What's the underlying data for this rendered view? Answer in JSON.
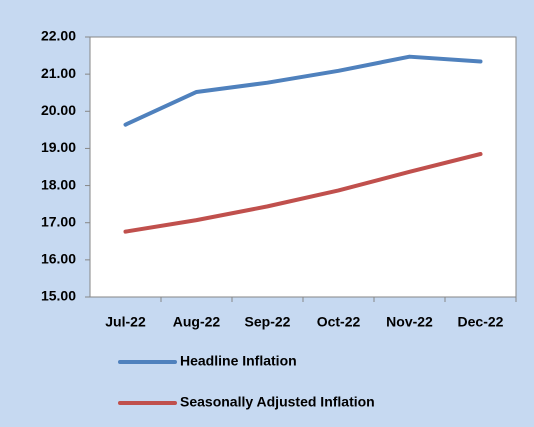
{
  "chart_data": {
    "type": "line",
    "categories": [
      "Jul-22",
      "Aug-22",
      "Sep-22",
      "Oct-22",
      "Nov-22",
      "Dec-22"
    ],
    "series": [
      {
        "name": "Headline Inflation",
        "color": "#4f81bd",
        "values": [
          19.64,
          20.52,
          20.77,
          21.09,
          21.47,
          21.34
        ]
      },
      {
        "name": "Seasonally Adjusted Inflation",
        "color": "#c0504d",
        "values": [
          16.76,
          17.07,
          17.44,
          17.87,
          18.37,
          18.85
        ]
      }
    ],
    "ylim": [
      15,
      22
    ],
    "yticks": [
      {
        "value": 15,
        "label": "15.00"
      },
      {
        "value": 16,
        "label": "16.00"
      },
      {
        "value": 17,
        "label": "17.00"
      },
      {
        "value": 18,
        "label": "18.00"
      },
      {
        "value": 19,
        "label": "19.00"
      },
      {
        "value": 20,
        "label": "20.00"
      },
      {
        "value": 21,
        "label": "21.00"
      },
      {
        "value": 22,
        "label": "22.00"
      }
    ],
    "grid": false,
    "legend": "bottom"
  }
}
